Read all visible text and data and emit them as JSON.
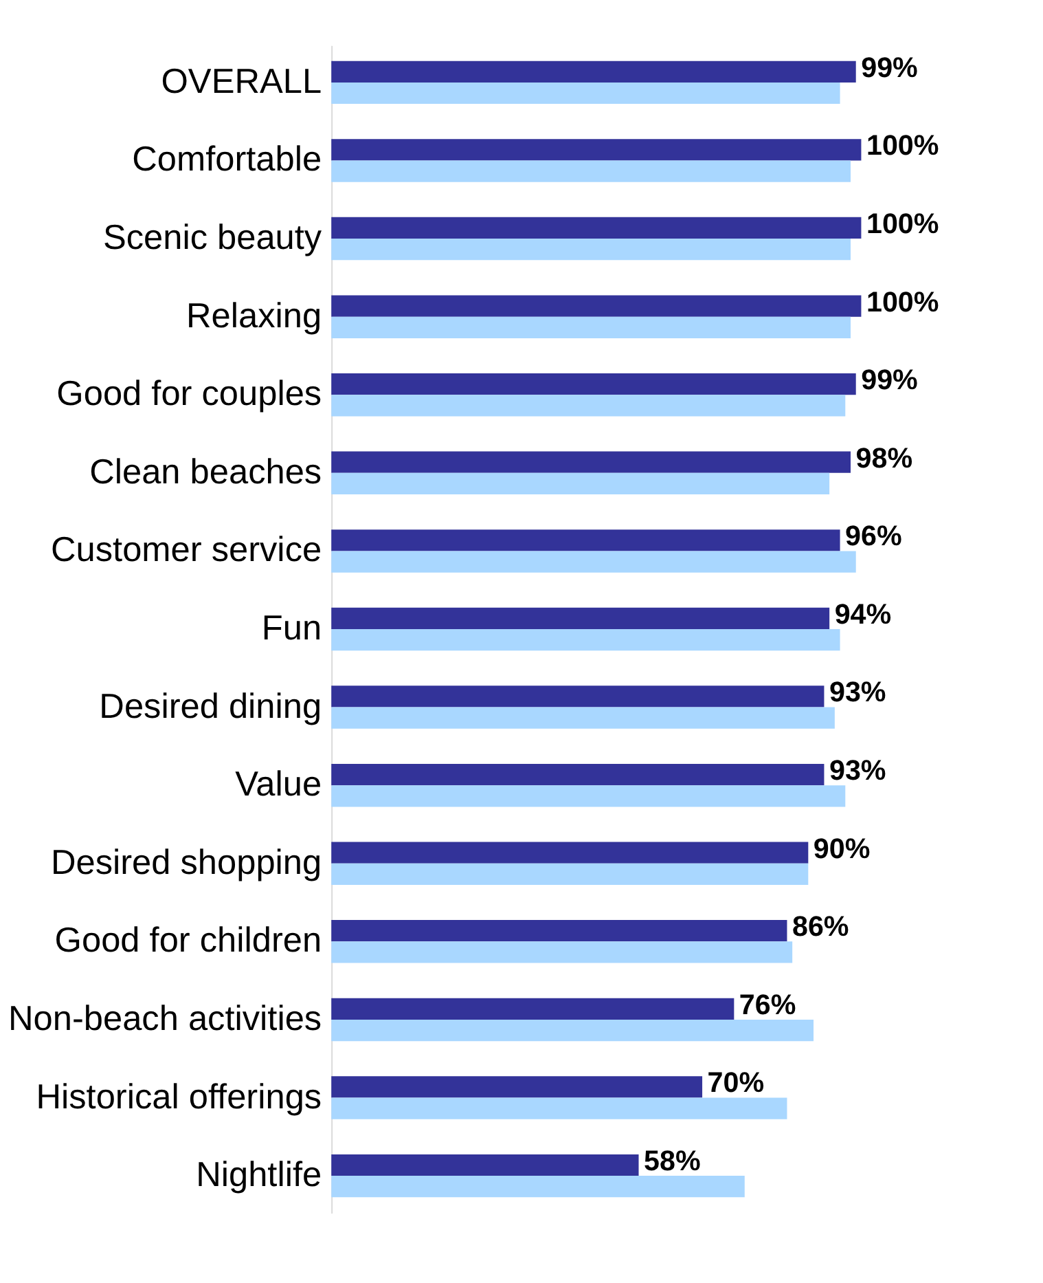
{
  "chart_data": {
    "type": "bar",
    "orientation": "horizontal",
    "categories": [
      "OVERALL",
      "Comfortable",
      "Scenic beauty",
      "Relaxing",
      "Good for couples",
      "Clean beaches",
      "Customer service",
      "Fun",
      "Desired dining",
      "Value",
      "Desired shopping",
      "Good for children",
      "Non-beach activities",
      "Historical offerings",
      "Nightlife"
    ],
    "series": [
      {
        "color": "#333399",
        "values": [
          99,
          100,
          100,
          100,
          99,
          98,
          96,
          94,
          93,
          93,
          90,
          86,
          76,
          70,
          58
        ],
        "value_labels": [
          "99%",
          "100%",
          "100%",
          "100%",
          "99%",
          "98%",
          "96%",
          "94%",
          "93%",
          "93%",
          "90%",
          "86%",
          "76%",
          "70%",
          "58%"
        ]
      },
      {
        "color": "#a9d7ff",
        "values": [
          96,
          98,
          98,
          98,
          97,
          94,
          99,
          96,
          95,
          97,
          90,
          87,
          91,
          86,
          78
        ]
      }
    ],
    "xlim": [
      0,
      100
    ],
    "tick_labels": "y",
    "legend": false
  }
}
